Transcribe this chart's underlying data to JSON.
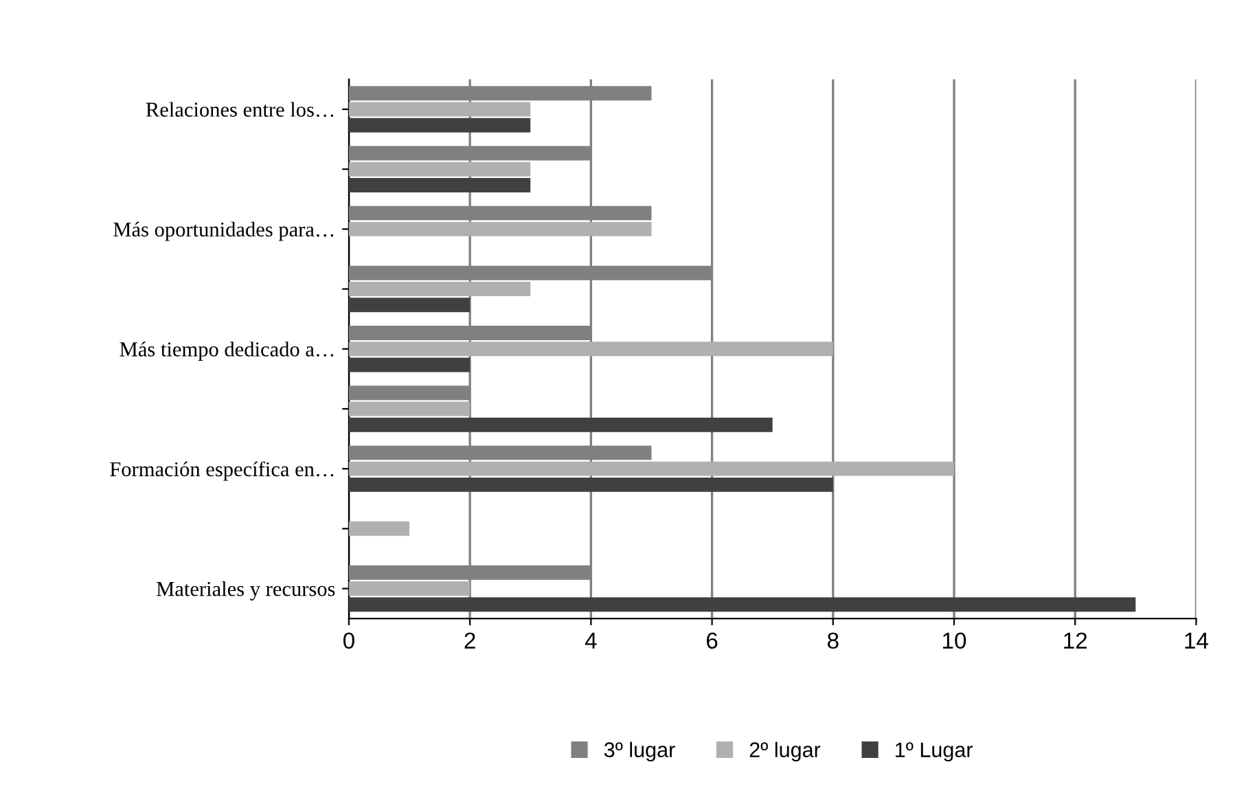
{
  "chart_data": {
    "type": "bar",
    "orientation": "horizontal",
    "categories": [
      "Relaciones entre los…",
      null,
      "Más oportunidades para…",
      null,
      "Más tiempo dedicado a…",
      null,
      "Formación específica en…",
      null,
      "Materiales y recursos"
    ],
    "series": [
      {
        "name": "3º lugar",
        "color": "#808080",
        "values": [
          5,
          4,
          5,
          6,
          4,
          2,
          5,
          0,
          4
        ]
      },
      {
        "name": "2º lugar",
        "color": "#b0b0b0",
        "values": [
          3,
          3,
          5,
          3,
          8,
          2,
          10,
          1,
          2
        ]
      },
      {
        "name": "1º Lugar",
        "color": "#404040",
        "values": [
          3,
          3,
          0,
          2,
          2,
          7,
          8,
          0,
          13
        ]
      }
    ],
    "xlim": [
      0,
      14
    ],
    "xticks": [
      0,
      2,
      4,
      6,
      8,
      10,
      12,
      14
    ],
    "grid": "x",
    "legend": "bottom"
  }
}
